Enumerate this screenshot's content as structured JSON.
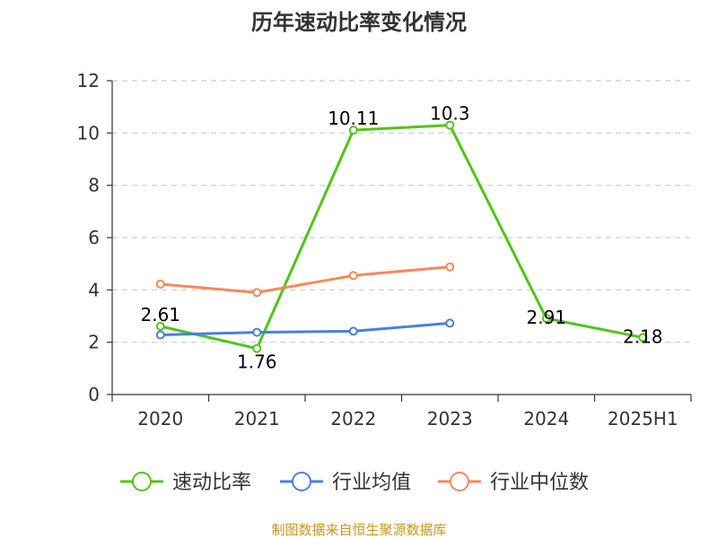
{
  "chart_data": {
    "type": "line",
    "title": "历年速动比率变化情况",
    "categories": [
      "2020",
      "2021",
      "2022",
      "2023",
      "2024",
      "2025H1"
    ],
    "ylim": [
      0,
      12
    ],
    "yticks": [
      0,
      2,
      4,
      6,
      8,
      10,
      12
    ],
    "grid": true,
    "legend_position": "bottom",
    "series": [
      {
        "name": "速动比率",
        "color": "#52c41a",
        "values": [
          2.61,
          1.76,
          10.11,
          10.3,
          2.91,
          2.18
        ],
        "labels": [
          "2.61",
          "1.76",
          "10.11",
          "10.3",
          "2.91",
          "2.18"
        ]
      },
      {
        "name": "行业均值",
        "color": "#4a7fdc",
        "values": [
          2.28,
          2.38,
          2.42,
          2.73,
          null,
          null
        ]
      },
      {
        "name": "行业中位数",
        "color": "#f5895a",
        "values": [
          4.22,
          3.9,
          4.55,
          4.88,
          null,
          null
        ]
      }
    ]
  },
  "source": "制图数据来自恒生聚源数据库"
}
